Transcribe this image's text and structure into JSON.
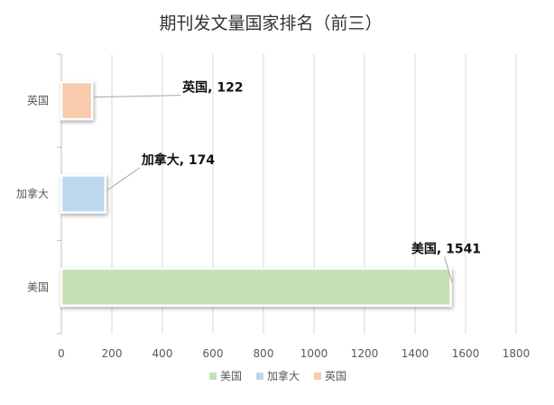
{
  "chart_data": {
    "type": "bar",
    "orientation": "horizontal",
    "title": "期刊发文量国家排名（前三）",
    "categories": [
      "英国",
      "加拿大",
      "美国"
    ],
    "series": [
      {
        "name": "英国",
        "category": "英国",
        "value": 122,
        "color": "#F8CBAD",
        "label": "英国, 122"
      },
      {
        "name": "加拿大",
        "category": "加拿大",
        "value": 174,
        "color": "#BDD7EE",
        "label": "加拿大, 174"
      },
      {
        "name": "美国",
        "category": "美国",
        "value": 1541,
        "color": "#C5E0B4",
        "label": "美国, 1541"
      }
    ],
    "legend": [
      "美国",
      "加拿大",
      "英国"
    ],
    "xlim": [
      0,
      1800
    ],
    "xticks": [
      "0",
      "200",
      "400",
      "600",
      "800",
      "1000",
      "1200",
      "1400",
      "1600",
      "1800"
    ],
    "grid": true,
    "legend_position": "bottom"
  }
}
